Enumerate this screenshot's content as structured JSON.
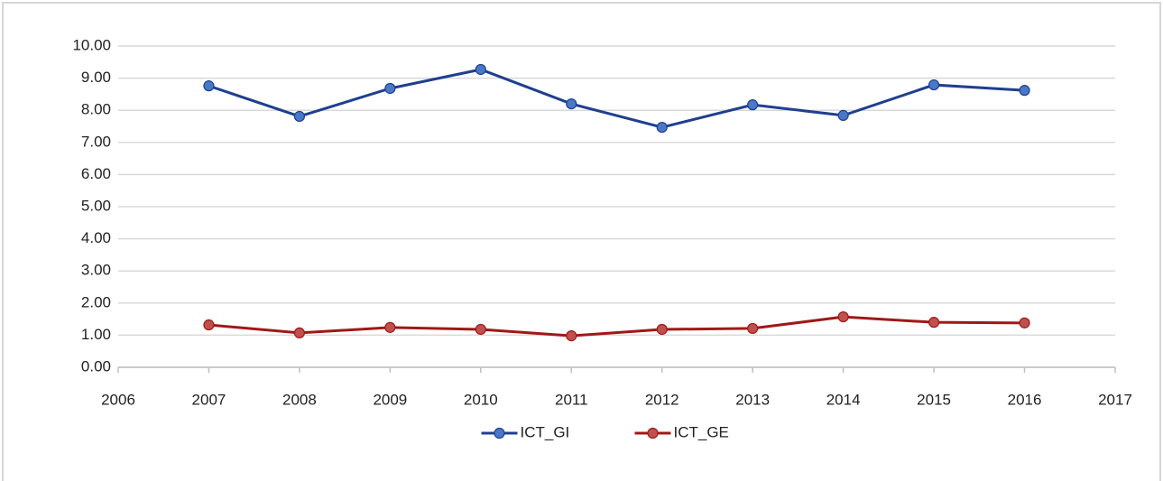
{
  "chart_data": {
    "type": "line",
    "x": [
      2007,
      2008,
      2009,
      2010,
      2011,
      2012,
      2013,
      2014,
      2015,
      2016
    ],
    "series": [
      {
        "name": "ICT_GI",
        "color": "#1f3f8f",
        "marker_color": "#4a78c8",
        "values": [
          8.76,
          7.81,
          8.68,
          9.27,
          8.2,
          7.47,
          8.17,
          7.84,
          8.79,
          8.62
        ]
      },
      {
        "name": "ICT_GE",
        "color": "#a01818",
        "marker_color": "#c0504d",
        "values": [
          1.32,
          1.07,
          1.24,
          1.18,
          0.98,
          1.18,
          1.21,
          1.57,
          1.4,
          1.38
        ]
      }
    ],
    "xlim": [
      2006,
      2017
    ],
    "xticks": [
      2006,
      2007,
      2008,
      2009,
      2010,
      2011,
      2012,
      2013,
      2014,
      2015,
      2016,
      2017
    ],
    "ylim": [
      0,
      10
    ],
    "yticks": [
      {
        "value": 0,
        "label": "0.00"
      },
      {
        "value": 1,
        "label": "1.00"
      },
      {
        "value": 2,
        "label": "2.00"
      },
      {
        "value": 3,
        "label": "3.00"
      },
      {
        "value": 4,
        "label": "4.00"
      },
      {
        "value": 5,
        "label": "5.00"
      },
      {
        "value": 6,
        "label": "6.00"
      },
      {
        "value": 7,
        "label": "7.00"
      },
      {
        "value": 8,
        "label": "8.00"
      },
      {
        "value": 9,
        "label": "9.00"
      },
      {
        "value": 10,
        "label": "10.00"
      }
    ],
    "grid": true,
    "legend": "bottom"
  }
}
